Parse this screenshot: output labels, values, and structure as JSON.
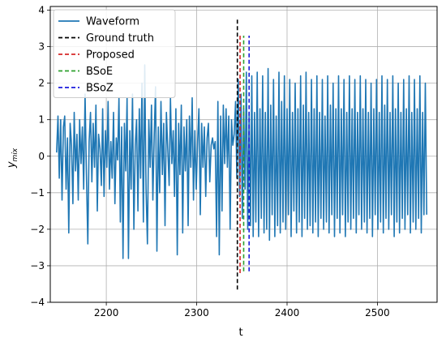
{
  "chart_data": {
    "type": "line",
    "title": "",
    "xlabel": "t",
    "ylabel": "y",
    "ylabel_sub": "mix",
    "xlim": [
      2138,
      2566
    ],
    "ylim": [
      -4,
      4.1
    ],
    "x_ticks": [
      2200,
      2300,
      2400,
      2500
    ],
    "y_ticks": [
      -4,
      -3,
      -2,
      -1,
      0,
      1,
      2,
      3,
      4
    ],
    "grid": true,
    "legend_position": "top-left",
    "series": [
      {
        "name": "Waveform",
        "color": "#1f77b4",
        "style": "solid",
        "x_start": 2145,
        "x_step": 1.5,
        "values": [
          0.1,
          1.1,
          -0.6,
          1.0,
          -1.2,
          0.8,
          1.1,
          -0.9,
          0.5,
          -2.1,
          0.9,
          0.3,
          -1.3,
          1.2,
          -0.4,
          0.6,
          -1.2,
          1.0,
          -0.2,
          0.8,
          -0.9,
          1.7,
          -0.5,
          -2.4,
          0.4,
          1.2,
          -0.7,
          0.9,
          -0.3,
          1.4,
          -1.5,
          0.6,
          0.2,
          -0.8,
          1.3,
          -1.1,
          0.7,
          -0.3,
          1.5,
          -0.9,
          0.4,
          -0.6,
          1.2,
          -1.3,
          0.5,
          -0.1,
          1.6,
          -1.8,
          0.8,
          -2.8,
          0.9,
          -0.4,
          1.6,
          -2.8,
          0.7,
          -0.9,
          1.7,
          -2.0,
          0.3,
          1.0,
          -1.5,
          1.3,
          -0.6,
          2.0,
          -1.8,
          2.5,
          -0.9,
          -2.4,
          1.0,
          -0.3,
          1.4,
          -1.2,
          0.6,
          1.9,
          -2.6,
          0.8,
          -1.0,
          1.5,
          -0.5,
          0.9,
          -1.9,
          1.2,
          0.2,
          -0.8,
          1.6,
          -0.2,
          0.7,
          -1.1,
          1.3,
          -2.7,
          0.9,
          -0.5,
          1.4,
          -2.1,
          0.8,
          -0.4,
          1.0,
          -1.9,
          1.1,
          -0.3,
          1.6,
          -1.2,
          0.7,
          -0.9,
          0.4,
          1.3,
          -1.6,
          0.9,
          -0.3,
          0.8,
          -1.1,
          0.5,
          0.9,
          -0.7,
          0.3,
          0.5,
          0.2,
          0.4,
          -2.2,
          1.5,
          -2.7,
          1.1,
          -1.5,
          1.4,
          -0.2,
          1.3,
          -0.3,
          1.1,
          -2.0,
          1.0,
          0.3,
          0.6,
          1.5,
          -0.6,
          2.1,
          -1.1,
          1.7,
          -1.7,
          1.3,
          -0.9,
          2.3,
          -2.0,
          1.2,
          -1.9,
          2.2,
          -2.2,
          1.2,
          -1.8,
          2.3,
          -2.2,
          1.3,
          -1.7,
          2.2,
          -2.1,
          1.2,
          -2.0,
          2.4,
          -2.3,
          1.4,
          -1.6,
          2.1,
          -2.2,
          1.1,
          -1.9,
          2.3,
          -2.1,
          1.5,
          -1.8,
          2.2,
          -2.0,
          1.3,
          -1.6,
          2.1,
          -2.2,
          1.2,
          -1.5,
          2.0,
          -2.1,
          1.3,
          -1.8,
          2.2,
          -2.2,
          1.4,
          -1.7,
          2.3,
          -2.0,
          1.2,
          -1.9,
          2.1,
          -2.1,
          1.3,
          -1.8,
          2.2,
          -2.2,
          1.2,
          -1.7,
          2.1,
          -2.0,
          1.1,
          -1.8,
          2.2,
          -2.1,
          1.4,
          -1.6,
          2.0,
          -2.2,
          1.3,
          -1.7,
          2.2,
          -2.1,
          1.3,
          -1.6,
          2.1,
          -2.2,
          1.2,
          -1.8,
          2.2,
          -2.0,
          1.3,
          -1.7,
          2.1,
          -2.1,
          1.2,
          -1.6,
          2.2,
          -2.0,
          1.3,
          -1.8,
          2.1,
          -2.1,
          1.2,
          -1.7,
          2.0,
          -2.2,
          1.3,
          -1.6,
          2.1,
          -2.0,
          1.2,
          -1.8,
          2.2,
          -2.1,
          1.4,
          -1.7,
          2.1,
          -2.0,
          1.2,
          -1.6,
          2.2,
          -2.2,
          1.3,
          -1.8,
          2.0,
          -2.1,
          1.2,
          -1.7,
          2.1,
          -2.0,
          1.3,
          -1.6,
          2.2,
          -2.1,
          1.2,
          -1.8,
          2.1,
          -2.0,
          1.3,
          -1.7,
          2.2,
          -2.1,
          1.2,
          -1.6,
          2.0,
          -1.6
        ]
      },
      {
        "name": "Ground truth",
        "color": "#000000",
        "style": "dashed",
        "x": 2345,
        "y_range": [
          -3.65,
          3.8
        ]
      },
      {
        "name": "Proposed",
        "color": "#d62728",
        "style": "dashed",
        "x": 2348,
        "y_range": [
          -3.2,
          3.3
        ]
      },
      {
        "name": "BSoE",
        "color": "#2ca02c",
        "style": "dashed",
        "x": 2352,
        "y_range": [
          -3.15,
          3.3
        ]
      },
      {
        "name": "BSoZ",
        "color": "#1a1adb",
        "style": "dashed",
        "x": 2358,
        "y_range": [
          -3.15,
          3.3
        ]
      }
    ]
  }
}
